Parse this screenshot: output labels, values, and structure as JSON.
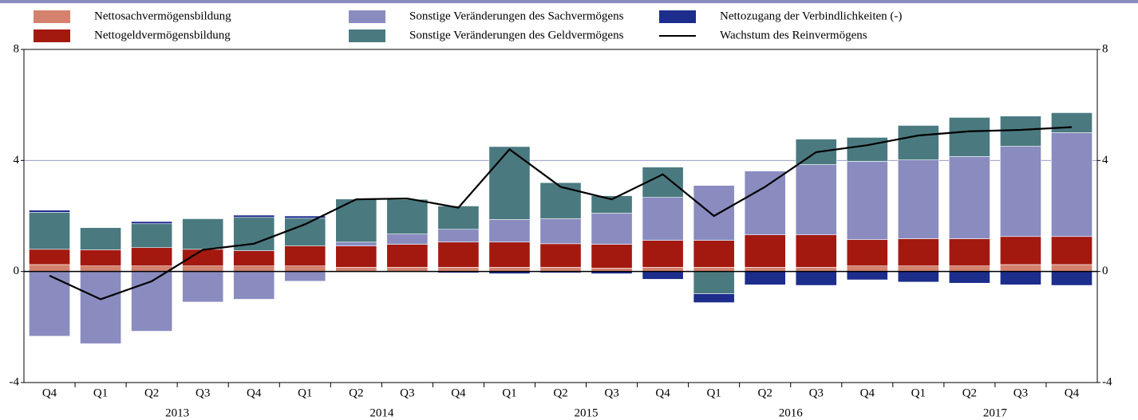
{
  "chart_data": {
    "type": "bar",
    "categories": [
      "Q4",
      "Q1",
      "Q2",
      "Q3",
      "Q4",
      "Q1",
      "Q2",
      "Q3",
      "Q4",
      "Q1",
      "Q2",
      "Q3",
      "Q4",
      "Q1",
      "Q2",
      "Q3",
      "Q4",
      "Q1",
      "Q2",
      "Q3",
      "Q4"
    ],
    "year_labels": [
      "2013",
      "2014",
      "2015",
      "2016",
      "2017"
    ],
    "series": [
      {
        "name": "Nettosachvermögensbildung",
        "color": "#d4826e",
        "values": [
          0.25,
          0.2,
          0.2,
          0.2,
          0.2,
          0.2,
          0.15,
          0.15,
          0.15,
          0.15,
          0.15,
          0.12,
          0.15,
          0.15,
          0.15,
          0.15,
          0.2,
          0.2,
          0.2,
          0.25,
          0.25
        ]
      },
      {
        "name": "Nettogeldvermögensbildung",
        "color": "#a31910",
        "values": [
          0.55,
          0.58,
          0.66,
          0.6,
          0.55,
          0.72,
          0.77,
          0.83,
          0.91,
          0.91,
          0.85,
          0.86,
          0.97,
          0.97,
          1.17,
          1.17,
          0.95,
          0.98,
          0.98,
          1.01,
          1.01
        ]
      },
      {
        "name": "Sonstige Veränderungen des Sachvermögens",
        "color": "#8a8cc0",
        "values": [
          -2.33,
          -2.6,
          -2.15,
          -1.1,
          -1.0,
          -0.35,
          0.14,
          0.37,
          0.46,
          0.81,
          0.9,
          1.12,
          1.55,
          1.98,
          2.3,
          2.53,
          2.82,
          2.84,
          2.96,
          3.25,
          3.74
        ]
      },
      {
        "name": "Sonstige Veränderungen des Geldvermögens",
        "color": "#4a7a80",
        "values": [
          1.33,
          0.8,
          0.86,
          1.1,
          1.2,
          1.0,
          1.55,
          1.25,
          0.84,
          2.63,
          1.3,
          0.63,
          1.09,
          -0.8,
          0,
          0.92,
          0.86,
          1.24,
          1.41,
          1.09,
          0.72
        ]
      },
      {
        "name": "Nettozugang der Verbindlichkeiten (-)",
        "color": "#1c2d8c",
        "values": [
          0.08,
          0,
          0.08,
          0,
          0.08,
          0.08,
          0,
          0,
          -0.05,
          -0.08,
          -0.05,
          -0.08,
          -0.28,
          -0.32,
          -0.48,
          -0.5,
          -0.3,
          -0.38,
          -0.42,
          -0.48,
          -0.5
        ]
      },
      {
        "name": "Wachstum des Reinvermögens",
        "type": "line",
        "color": "#000000",
        "values": [
          -0.15,
          -1.0,
          -0.35,
          0.78,
          1.0,
          1.7,
          2.6,
          2.63,
          2.3,
          4.4,
          3.05,
          2.6,
          3.5,
          2.0,
          3.05,
          4.3,
          4.55,
          4.9,
          5.05,
          5.1,
          5.2
        ]
      }
    ],
    "ylim": [
      -4,
      8
    ],
    "yticks": [
      -4,
      0,
      4,
      8
    ],
    "y2lim": [
      -4,
      8
    ],
    "y2ticks": [
      -4,
      0,
      4,
      8
    ],
    "grid": true
  }
}
